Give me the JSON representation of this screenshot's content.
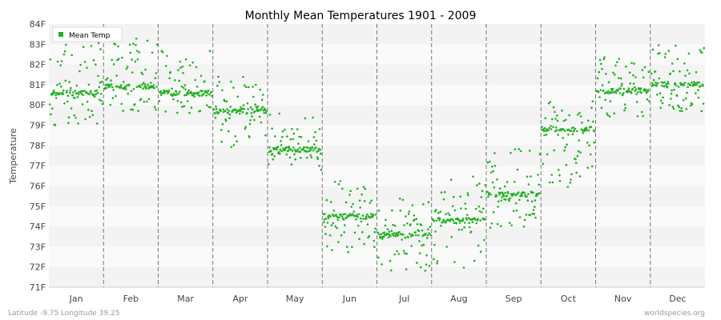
{
  "chart_data": {
    "type": "scatter",
    "title": "Monthly Mean Temperatures 1901 - 2009",
    "ylabel": "Temperature",
    "xlabel": "",
    "categories": [
      "Jan",
      "Feb",
      "Mar",
      "Apr",
      "May",
      "Jun",
      "Jul",
      "Aug",
      "Sep",
      "Oct",
      "Nov",
      "Dec"
    ],
    "y_ticks": [
      "71F",
      "72F",
      "73F",
      "74F",
      "75F",
      "76F",
      "77F",
      "78F",
      "79F",
      "80F",
      "81F",
      "82F",
      "83F",
      "84F"
    ],
    "ylim": [
      71,
      84
    ],
    "grid": true,
    "legend": {
      "position": "top-left",
      "entries": [
        "Mean Temp"
      ]
    },
    "series": [
      {
        "name": "Mean Temp",
        "color": "#1fb11f",
        "years": [
          1901,
          2009
        ],
        "monthly_summary": {
          "Jan": {
            "typical": 80.6,
            "min": 79.0,
            "max": 83.3
          },
          "Feb": {
            "typical": 80.9,
            "min": 79.5,
            "max": 83.3
          },
          "Mar": {
            "typical": 80.6,
            "min": 79.6,
            "max": 82.7
          },
          "Apr": {
            "typical": 79.7,
            "min": 77.9,
            "max": 81.4
          },
          "May": {
            "typical": 77.8,
            "min": 76.8,
            "max": 79.6
          },
          "Jun": {
            "typical": 74.5,
            "min": 72.7,
            "max": 76.6
          },
          "Jul": {
            "typical": 73.6,
            "min": 71.7,
            "max": 75.5
          },
          "Aug": {
            "typical": 74.3,
            "min": 71.9,
            "max": 76.5
          },
          "Sep": {
            "typical": 75.6,
            "min": 73.9,
            "max": 78.0
          },
          "Oct": {
            "typical": 78.8,
            "min": 75.9,
            "max": 80.2
          },
          "Nov": {
            "typical": 80.7,
            "min": 79.4,
            "max": 82.4
          },
          "Dec": {
            "typical": 81.0,
            "min": 79.6,
            "max": 83.0
          }
        }
      }
    ]
  },
  "footer": {
    "location": "Latitude -9.75 Longitude 39.25",
    "source": "worldspecies.org"
  }
}
